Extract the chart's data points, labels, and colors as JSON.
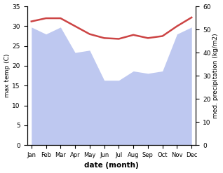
{
  "months": [
    "Jan",
    "Feb",
    "Mar",
    "Apr",
    "May",
    "Jun",
    "Jul",
    "Aug",
    "Sep",
    "Oct",
    "Nov",
    "Dec"
  ],
  "temp": [
    31.2,
    32.0,
    32.0,
    30.0,
    28.0,
    27.0,
    26.8,
    27.8,
    27.0,
    27.5,
    30.0,
    32.2
  ],
  "precip": [
    51,
    48,
    51,
    40,
    41,
    28,
    28,
    32,
    31,
    32,
    48,
    51
  ],
  "temp_color": "#cc4444",
  "precip_fill_color": "#bec8f0",
  "xlabel": "date (month)",
  "ylabel_left": "max temp (C)",
  "ylabel_right": "med. precipitation (kg/m2)",
  "ylim_left": [
    0,
    35
  ],
  "ylim_right": [
    0,
    60
  ],
  "yticks_left": [
    0,
    5,
    10,
    15,
    20,
    25,
    30,
    35
  ],
  "yticks_right": [
    0,
    10,
    20,
    30,
    40,
    50,
    60
  ],
  "bg_color": "#ffffff"
}
